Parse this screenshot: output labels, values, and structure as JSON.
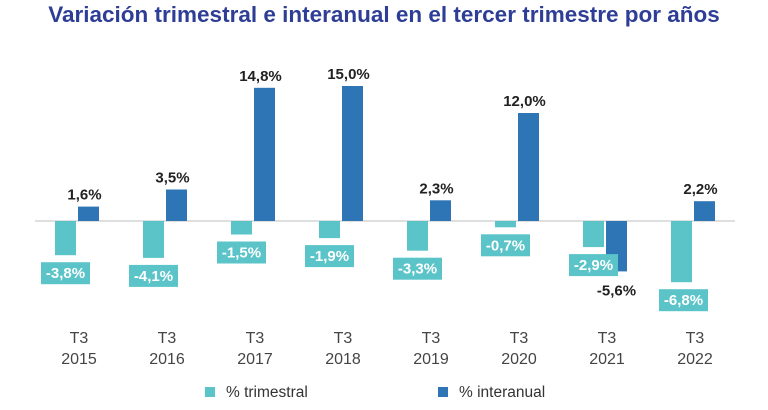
{
  "chart_data": {
    "type": "bar",
    "title": "Variación trimestral e interanual en el tercer trimestre por años",
    "categories": [
      [
        "T3",
        "2015"
      ],
      [
        "T3",
        "2016"
      ],
      [
        "T3",
        "2017"
      ],
      [
        "T3",
        "2018"
      ],
      [
        "T3",
        "2019"
      ],
      [
        "T3",
        "2020"
      ],
      [
        "T3",
        "2021"
      ],
      [
        "T3",
        "2022"
      ]
    ],
    "series": [
      {
        "name": "% trimestral",
        "color": "#5bc4c9",
        "values": [
          -3.8,
          -4.1,
          -1.5,
          -1.9,
          -3.3,
          -0.7,
          -2.9,
          -6.8
        ],
        "labels": [
          "-3,8%",
          "-4,1%",
          "-1,5%",
          "-1,9%",
          "-3,3%",
          "-0,7%",
          "-2,9%",
          "-6,8%"
        ]
      },
      {
        "name": "% interanual",
        "color": "#2e75b6",
        "values": [
          1.6,
          3.5,
          14.8,
          15.0,
          2.3,
          12.0,
          -5.6,
          2.2
        ],
        "labels": [
          "1,6%",
          "3,5%",
          "14,8%",
          "15,0%",
          "2,3%",
          "12,0%",
          "-5,6%",
          "2,2%"
        ]
      }
    ],
    "legend_position": "bottom",
    "grid": false
  }
}
